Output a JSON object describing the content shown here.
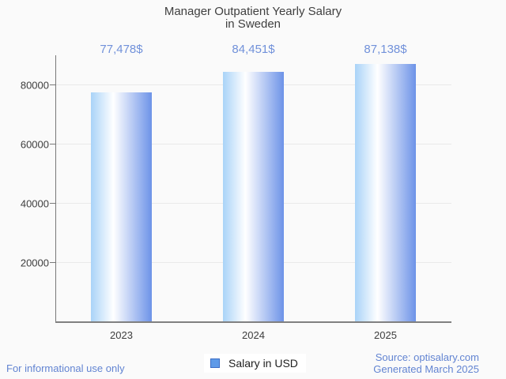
{
  "title": {
    "line1": "Manager Outpatient Yearly Salary",
    "line2": "in Sweden"
  },
  "chart_data": {
    "type": "bar",
    "categories": [
      "2023",
      "2024",
      "2025"
    ],
    "series": [
      {
        "name": "Salary in USD",
        "values": [
          77478,
          84451,
          87138
        ]
      }
    ],
    "value_labels": [
      "77,478$",
      "84,451$",
      "87,138$"
    ],
    "title": "Manager Outpatient Yearly Salary in Sweden",
    "xlabel": "",
    "ylabel": "",
    "y_ticks": [
      20000,
      40000,
      60000,
      80000
    ],
    "ylim": [
      0,
      90000
    ],
    "grid": true,
    "legend_position": "bottom"
  },
  "legend": {
    "label": "Salary in USD"
  },
  "footer": {
    "left": "For informational use only",
    "source": "Source: optisalary.com",
    "generated": "Generated March 2025"
  },
  "colors": {
    "bar_gradient_left": "#a9d3f8",
    "bar_gradient_mid": "#ffffff",
    "bar_gradient_right": "#6d93e8",
    "value_label": "#7191da",
    "footer_text": "#6284d2",
    "legend_swatch_fill": "#5f9ae8",
    "legend_swatch_border": "#3b6cc5",
    "title_text": "#404040",
    "axis_text": "#3d3d3d",
    "axis_line": "#808080",
    "gridline": "#e9e9e9",
    "background": "#fafafa"
  }
}
